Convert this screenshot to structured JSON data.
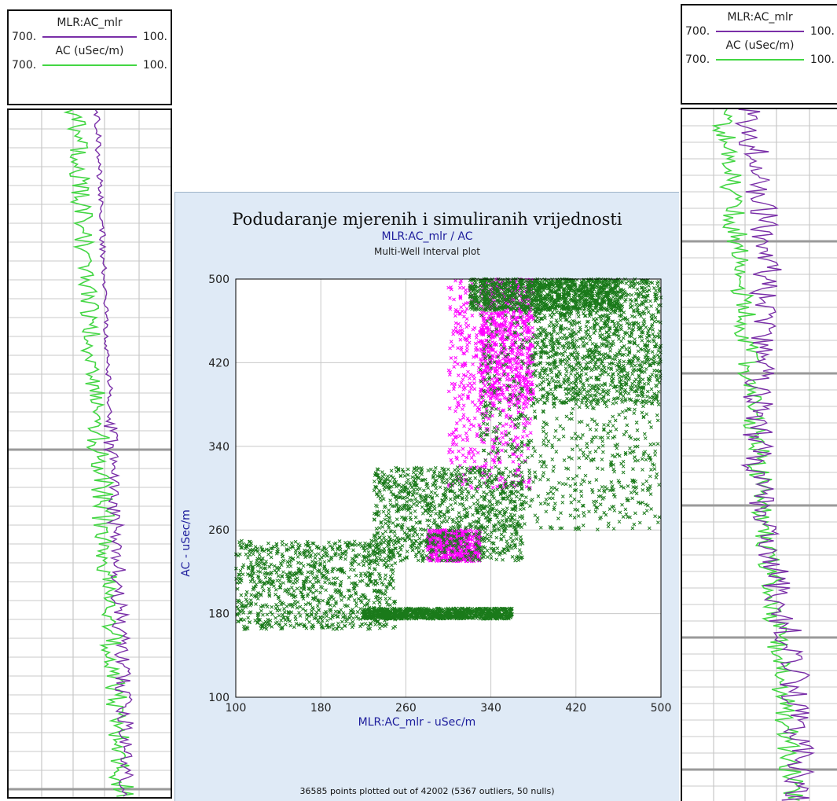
{
  "left_track": {
    "legend": {
      "curve1_name": "MLR:AC_mlr",
      "curve1_left": "700.",
      "curve1_right": "100.",
      "curve1_color": "#7a2fa8",
      "curve2_name": "AC (uSec/m)",
      "curve2_left": "700.",
      "curve2_right": "100.",
      "curve2_color": "#43d643"
    }
  },
  "right_track": {
    "legend": {
      "curve1_name": "MLR:AC_mlr",
      "curve1_left": "700.",
      "curve1_right": "100.",
      "curve1_color": "#7a2fa8",
      "curve2_name": "AC (uSec/m)",
      "curve2_left": "700.",
      "curve2_right": "100.",
      "curve2_color": "#43d643"
    }
  },
  "chart_data": {
    "type": "scatter",
    "title": "Podudaranje mjerenih i simuliranih vrijednosti",
    "subtitle": "MLR:AC_mlr / AC",
    "subtitle2": "Multi-Well Interval plot",
    "xlabel": "MLR:AC_mlr - uSec/m",
    "ylabel": "AC - uSec/m",
    "xlim": [
      100,
      500
    ],
    "ylim": [
      100,
      500
    ],
    "xticks": [
      100,
      180,
      260,
      340,
      420,
      500
    ],
    "yticks": [
      100,
      180,
      260,
      340,
      420,
      500
    ],
    "xtick_labels": [
      "100",
      "180",
      "260",
      "340",
      "420",
      "500"
    ],
    "ytick_labels": [
      "100",
      "180",
      "260",
      "340",
      "420",
      "500"
    ],
    "grid": true,
    "marker": "x",
    "footer": "36585 points plotted out of 42002 (5367 outliers, 50 nulls)",
    "series": [
      {
        "color": "#ff00ff",
        "clusters": [
          {
            "x": [
              300,
              380
            ],
            "y": [
              300,
              500
            ]
          },
          {
            "x": [
              330,
              380
            ],
            "y": [
              380,
              500
            ]
          },
          {
            "x": [
              280,
              330
            ],
            "y": [
              230,
              260
            ]
          }
        ]
      },
      {
        "color": "#1a7a1a",
        "clusters": [
          {
            "x": [
              100,
              250
            ],
            "y": [
              165,
              250
            ]
          },
          {
            "x": [
              230,
              370
            ],
            "y": [
              230,
              320
            ]
          },
          {
            "x": [
              330,
              500
            ],
            "y": [
              260,
              500
            ]
          },
          {
            "x": [
              380,
              500
            ],
            "y": [
              380,
              500
            ]
          },
          {
            "x": [
              220,
              360
            ],
            "y": [
              175,
              185
            ]
          },
          {
            "x": [
              320,
              460
            ],
            "y": [
              470,
              500
            ]
          }
        ]
      }
    ]
  }
}
